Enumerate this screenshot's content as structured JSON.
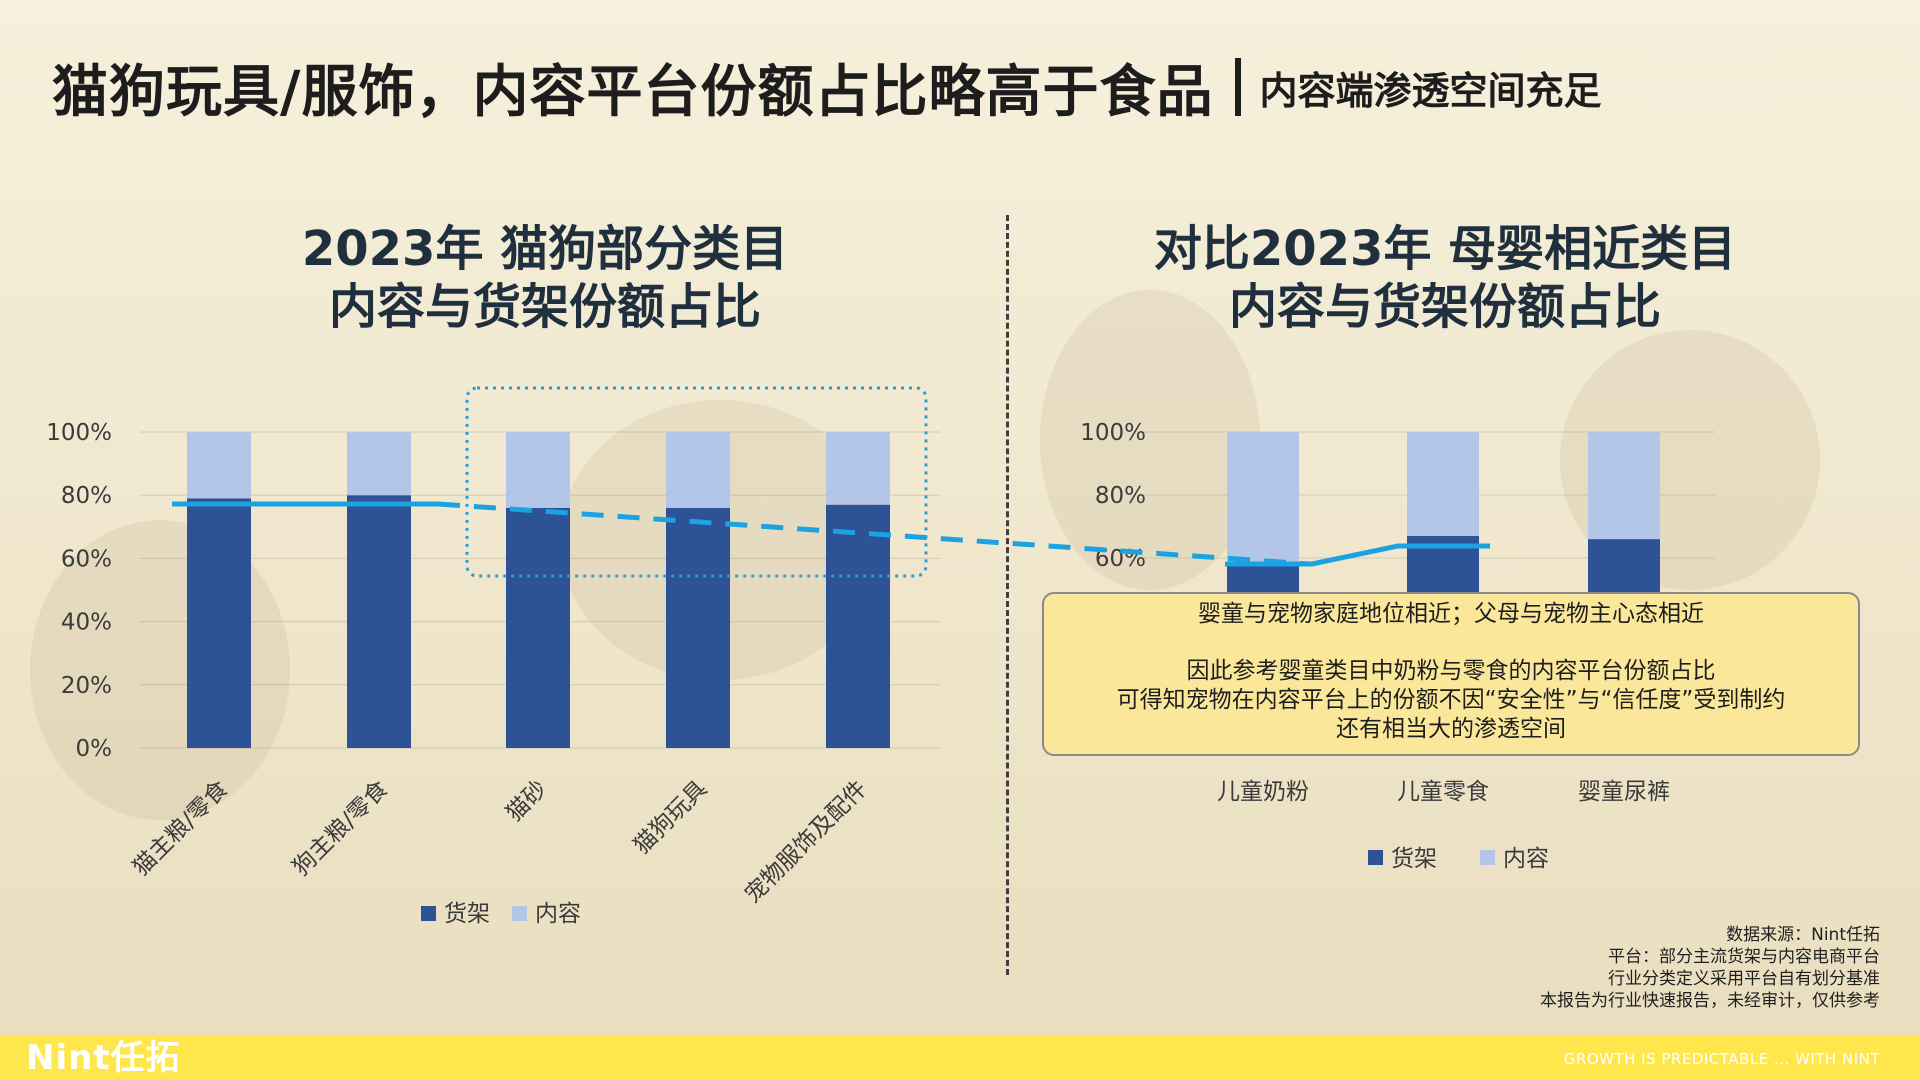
{
  "page": {
    "title_main": "猫狗玩具/服饰，内容平台份额占比略高于食品",
    "title_sub": "内容端渗透空间充足",
    "left_title_line1": "2023年 猫狗部分类目",
    "left_title_line2": "内容与货架份额占比",
    "right_title_line1": "对比2023年 母婴相近类目",
    "right_title_line2": "内容与货架份额占比",
    "note_line1": "婴童与宠物家庭地位相近；父母与宠物主心态相近",
    "note_line2": "因此参考婴童类目中奶粉与零食的内容平台份额占比",
    "note_line3": "可得知宠物在内容平台上的份额不因“安全性”与“信任度”受到制约",
    "note_line4": "还有相当大的渗透空间",
    "source_line1": "数据来源：Nint任拓",
    "source_line2": "平台：部分主流货架与内容电商平台",
    "source_line3": "行业分类定义采用平台自有划分基准",
    "source_line4": "本报告为行业快速报告，未经审计，仅供参考",
    "logo": "Nint任拓",
    "slogan": "GROWTH IS PREDICTABLE ... WITH NINT"
  },
  "colors": {
    "shelf": "#2d5295",
    "content": "#b3c6e7",
    "trend": "#1aa3e0",
    "highlight_box": "#2a9fd6",
    "footer": "#fde74c"
  },
  "chart_data": [
    {
      "type": "bar",
      "stacked": true,
      "categories": [
        "猫主粮/零食",
        "狗主粮/零食",
        "猫砂",
        "猫狗玩具",
        "宠物服饰及配件"
      ],
      "series": [
        {
          "name": "货架",
          "values": [
            79,
            80,
            76,
            76,
            77
          ]
        },
        {
          "name": "内容",
          "values": [
            21,
            20,
            24,
            24,
            23
          ]
        }
      ],
      "ylim": [
        0,
        100
      ],
      "yticks": [
        "0%",
        "20%",
        "40%",
        "60%",
        "80%",
        "100%"
      ],
      "legend": "bottom",
      "grid": true
    },
    {
      "type": "bar",
      "stacked": true,
      "categories": [
        "儿童奶粉",
        "儿童零食",
        "婴童尿裤"
      ],
      "series": [
        {
          "name": "货架",
          "values": [
            58,
            67,
            66
          ]
        },
        {
          "name": "内容",
          "values": [
            42,
            33,
            34
          ]
        }
      ],
      "ylim": [
        0,
        100
      ],
      "yticks": [
        "60%",
        "80%",
        "100%"
      ],
      "legend": "bottom",
      "grid": true
    }
  ]
}
